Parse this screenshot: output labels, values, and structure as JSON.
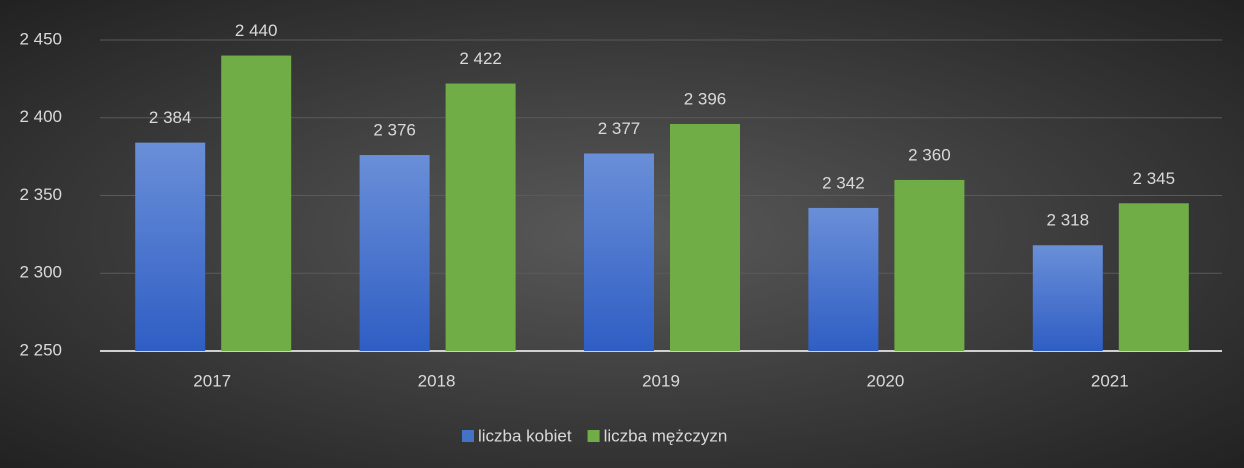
{
  "chart_data": {
    "type": "bar",
    "categories": [
      "2017",
      "2018",
      "2019",
      "2020",
      "2021"
    ],
    "series": [
      {
        "name": "liczba kobiet",
        "color": "#4472c4",
        "values": [
          2384,
          2376,
          2377,
          2342,
          2318
        ],
        "value_labels": [
          "2 384",
          "2 376",
          "2 377",
          "2 342",
          "2 318"
        ]
      },
      {
        "name": "liczba mężczyzn",
        "color": "#70ad47",
        "values": [
          2440,
          2422,
          2396,
          2360,
          2345
        ],
        "value_labels": [
          "2 440",
          "2 422",
          "2 396",
          "2 360",
          "2 345"
        ]
      }
    ],
    "ylim": [
      2250,
      2450
    ],
    "yticks": [
      {
        "value": 2250,
        "label": "2 250"
      },
      {
        "value": 2300,
        "label": "2 300"
      },
      {
        "value": 2350,
        "label": "2 350"
      },
      {
        "value": 2400,
        "label": "2 400"
      },
      {
        "value": 2450,
        "label": "2 450"
      }
    ],
    "grid": true,
    "legend": "bottom"
  }
}
